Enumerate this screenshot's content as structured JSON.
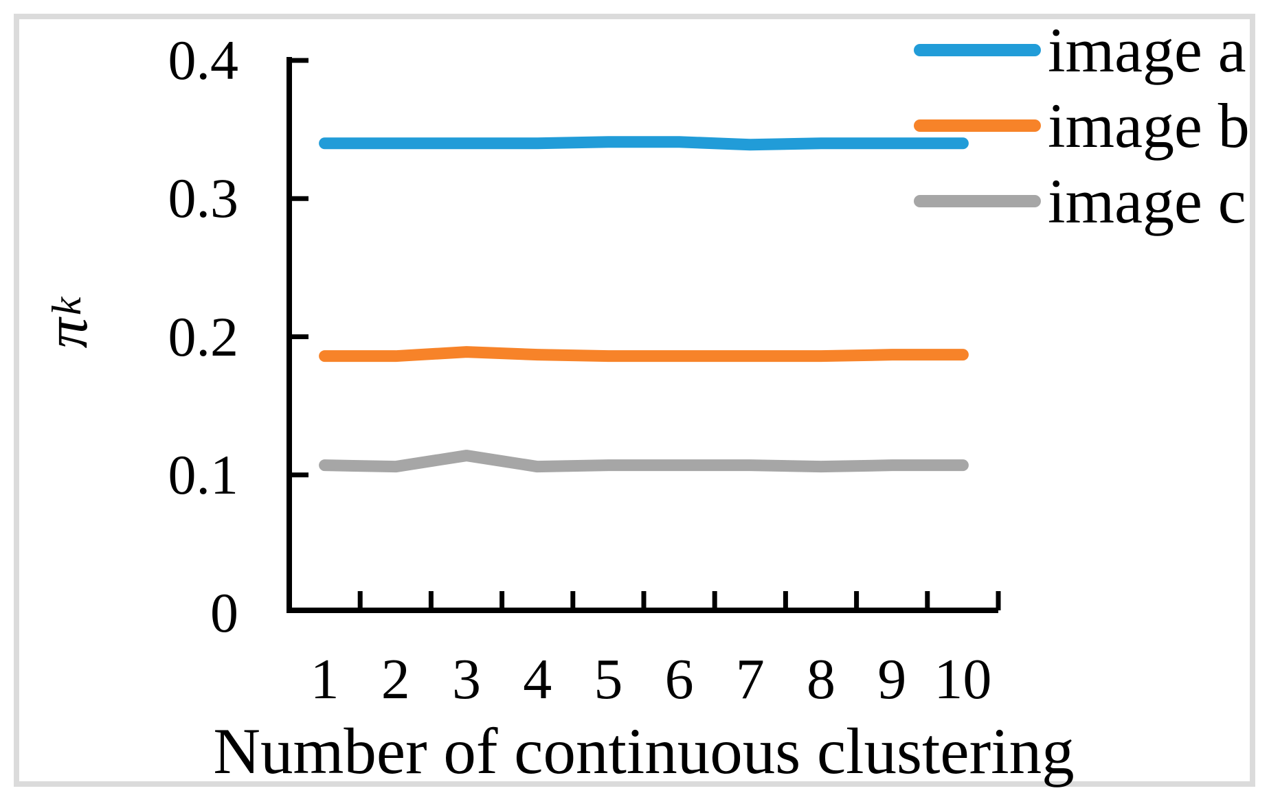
{
  "figure": {
    "background": "#ffffff",
    "frame_color": "#dbdbdb",
    "axis_color": "#000000",
    "text_color": "#000000"
  },
  "chart_data": {
    "type": "line",
    "title": "",
    "xlabel": "Number of continuous clustering",
    "ylabel": "π_k",
    "ylabel_main": "π",
    "ylabel_sub": "k",
    "x": [
      1,
      2,
      3,
      4,
      5,
      6,
      7,
      8,
      9,
      10
    ],
    "x_tick_labels": [
      "1",
      "2",
      "3",
      "4",
      "5",
      "6",
      "7",
      "8",
      "9",
      "10"
    ],
    "y_ticks": [
      0,
      0.1,
      0.2,
      0.3,
      0.4
    ],
    "y_tick_labels": [
      "0",
      "0.1",
      "0.2",
      "0.3",
      "0.4"
    ],
    "ylim": [
      0,
      0.4
    ],
    "grid": false,
    "legend_position": "top-right",
    "series": [
      {
        "name": "image a",
        "color": "#219cd8",
        "values": [
          0.34,
          0.34,
          0.34,
          0.34,
          0.341,
          0.341,
          0.339,
          0.34,
          0.34,
          0.34
        ]
      },
      {
        "name": "image b",
        "color": "#f78329",
        "values": [
          0.186,
          0.186,
          0.189,
          0.187,
          0.186,
          0.186,
          0.186,
          0.186,
          0.187,
          0.187
        ]
      },
      {
        "name": "image c",
        "color": "#a6a6a6",
        "values": [
          0.107,
          0.106,
          0.114,
          0.106,
          0.107,
          0.107,
          0.107,
          0.106,
          0.107,
          0.107
        ]
      }
    ]
  }
}
